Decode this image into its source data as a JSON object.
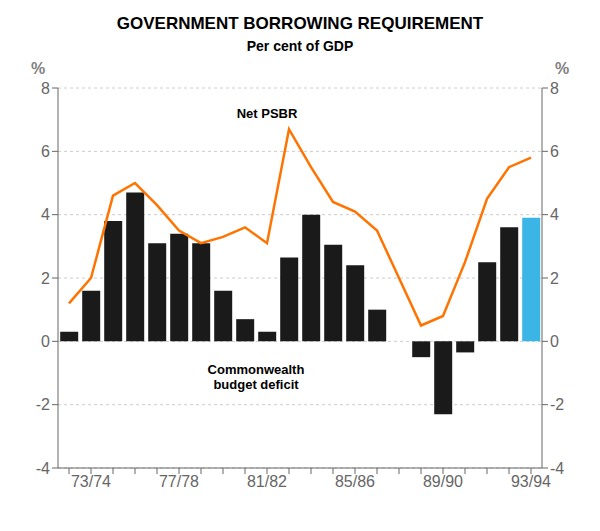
{
  "chart_data": {
    "type": "bar",
    "title": "GOVERNMENT BORROWING REQUIREMENT",
    "subtitle": "Per cent of GDP",
    "categories": [
      null,
      "73/74",
      null,
      null,
      null,
      "77/78",
      null,
      null,
      null,
      "81/82",
      null,
      null,
      null,
      "85/86",
      null,
      null,
      null,
      "89/90",
      null,
      null,
      null,
      "93/94"
    ],
    "series": [
      {
        "type": "bar",
        "values": [
          0.3,
          1.6,
          3.8,
          4.7,
          3.1,
          3.4,
          3.1,
          1.6,
          0.7,
          0.3,
          2.65,
          4.0,
          3.05,
          2.4,
          1.0,
          0.0,
          -0.5,
          -2.3,
          -0.35,
          2.5,
          3.6,
          3.9
        ],
        "colors": [
          "#1a1a1a",
          "#1a1a1a",
          "#1a1a1a",
          "#1a1a1a",
          "#1a1a1a",
          "#1a1a1a",
          "#1a1a1a",
          "#1a1a1a",
          "#1a1a1a",
          "#1a1a1a",
          "#1a1a1a",
          "#1a1a1a",
          "#1a1a1a",
          "#1a1a1a",
          "#1a1a1a",
          "#1a1a1a",
          "#1a1a1a",
          "#1a1a1a",
          "#1a1a1a",
          "#1a1a1a",
          "#1a1a1a",
          "#3ab5e6"
        ]
      },
      {
        "type": "line",
        "color": "#ff7300",
        "values": [
          1.2,
          2.0,
          4.6,
          5.0,
          4.3,
          3.5,
          3.1,
          3.3,
          3.6,
          3.1,
          6.7,
          5.5,
          4.4,
          4.1,
          3.5,
          2.0,
          0.5,
          0.8,
          2.5,
          4.5,
          5.5,
          5.8
        ]
      }
    ],
    "ylim": [
      -4,
      8
    ],
    "yticks": [
      -4,
      -2,
      0,
      2,
      4,
      6,
      8
    ],
    "y2lim": [
      -4,
      8
    ],
    "y2ticks": [
      -4,
      -2,
      0,
      2,
      4,
      6,
      8
    ],
    "ylabel": "%",
    "y2label": "%",
    "grid": true,
    "annotations": [
      {
        "text": "Net PSBR",
        "x": 9.0,
        "y": 7.2
      },
      {
        "text": "Commonwealth\nbudget deficit",
        "x": 8.5,
        "y": -1.1
      }
    ]
  }
}
